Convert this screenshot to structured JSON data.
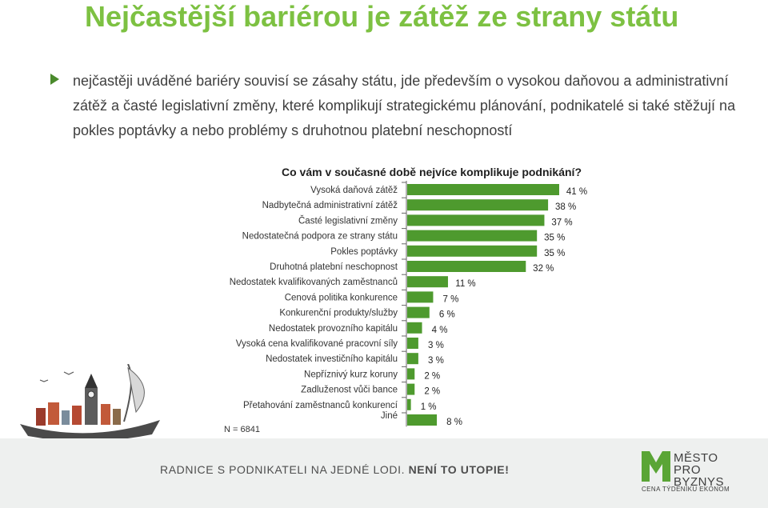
{
  "page": {
    "title": "Nejčastější bariérou je zátěž ze strany státu",
    "bullet": "nejčastěji uváděné bariéry souvisí se zásahy státu, jde především o vysokou daňovou a administrativní zátěž a časté legislativní změny, které komplikují strategickému plánování, podnikatelé si také stěžují na pokles poptávky a nebo problémy s druhotnou platební neschopností",
    "n_label": "N = 6841"
  },
  "banner": {
    "text_part1": "RADNICE S PODNIKATELI NA JEDNÉ LODI. ",
    "text_part2": "NENÍ TO UTOPIE!",
    "logo_line1": "MĚSTO",
    "logo_line2": "PRO",
    "logo_line3": "BYZNYS",
    "logo_sub": "CENA TÝDENÍKU EKONOM"
  },
  "colors": {
    "title": "#7dc142",
    "bar": "#4e9a2e",
    "text": "#3f3f3f"
  },
  "chart_data": {
    "type": "bar",
    "orientation": "horizontal",
    "title": "Co vám v současné době nejvíce komplikuje podnikání?",
    "unit": "%",
    "xlim": [
      0,
      41
    ],
    "categories": [
      "Vysoká daňová zátěž",
      "Nadbytečná administrativní zátěž",
      "Časté legislativní změny",
      "Nedostatečná podpora ze strany státu",
      "Pokles poptávky",
      "Druhotná platební neschopnost",
      "Nedostatek kvalifikovaných zaměstnanců",
      "Cenová politika konkurence",
      "Konkurenční produkty/služby",
      "Nedostatek provozního kapitálu",
      "Vysoká cena kvalifikované pracovní síly",
      "Nedostatek investičního kapitálu",
      "Nepříznivý kurz koruny",
      "Zadluženost vůči bance",
      "Přetahování zaměstnanců konkurencí",
      "Jiné"
    ],
    "values": [
      41,
      38,
      37,
      35,
      35,
      32,
      11,
      7,
      6,
      4,
      3,
      3,
      2,
      2,
      1,
      8
    ],
    "data_labels": [
      "41 %",
      "38 %",
      "37 %",
      "35 %",
      "35 %",
      "32 %",
      "11 %",
      "7 %",
      "6 %",
      "4 %",
      "3 %",
      "3 %",
      "2 %",
      "2 %",
      "1 %",
      "8 %"
    ]
  }
}
